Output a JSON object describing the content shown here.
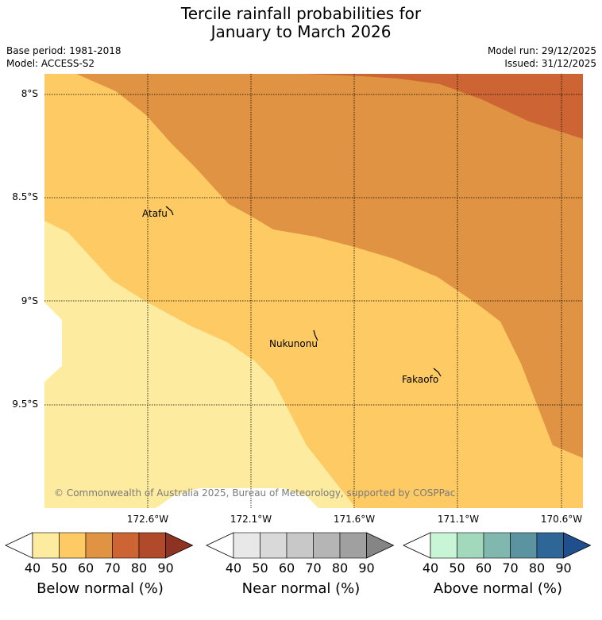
{
  "title": {
    "line1": "Tercile rainfall probabilities for",
    "line2": "January to March 2026"
  },
  "meta": {
    "base_period": "Base period: 1981-2018",
    "model": "Model: ACCESS-S2",
    "model_run": "Model run: 29/12/2025",
    "issued": "Issued: 31/12/2025"
  },
  "axes": {
    "lat_labels": [
      "8°S",
      "8.5°S",
      "9°S",
      "9.5°S"
    ],
    "lon_labels": [
      "172.6°W",
      "172.1°W",
      "171.6°W",
      "171.1°W",
      "170.6°W"
    ]
  },
  "places": {
    "atafu": "Atafu",
    "nukunonu": "Nukunonu",
    "fakaofo": "Fakaofo"
  },
  "copyright": "© Commonwealth of Australia 2025, Bureau of Meteorology, supported by COSPPac",
  "legend": {
    "below": {
      "label": "Below normal (%)",
      "ticks": [
        "40",
        "50",
        "60",
        "70",
        "80",
        "90"
      ],
      "colors": [
        "#ffffff",
        "#fdeb9f",
        "#fdca64",
        "#e09443",
        "#cc6533",
        "#b04a2a",
        "#8e3222"
      ]
    },
    "near": {
      "label": "Near normal (%)",
      "ticks": [
        "40",
        "50",
        "60",
        "70",
        "80",
        "90"
      ],
      "colors": [
        "#ffffff",
        "#e8e8e8",
        "#d9d9d9",
        "#c8c8c8",
        "#b5b5b5",
        "#a0a0a0",
        "#858585"
      ]
    },
    "above": {
      "label": "Above normal (%)",
      "ticks": [
        "40",
        "50",
        "60",
        "70",
        "80",
        "90"
      ],
      "colors": [
        "#ffffff",
        "#c8f5d5",
        "#a2d9bd",
        "#80b8b0",
        "#5b93a0",
        "#2e6698",
        "#1f4f8c"
      ]
    }
  },
  "region_colors": {
    "below_40_50": "#fdeb9f",
    "below_50_60": "#fdca64",
    "below_60_70": "#e09443",
    "below_70_80": "#cc6533"
  }
}
